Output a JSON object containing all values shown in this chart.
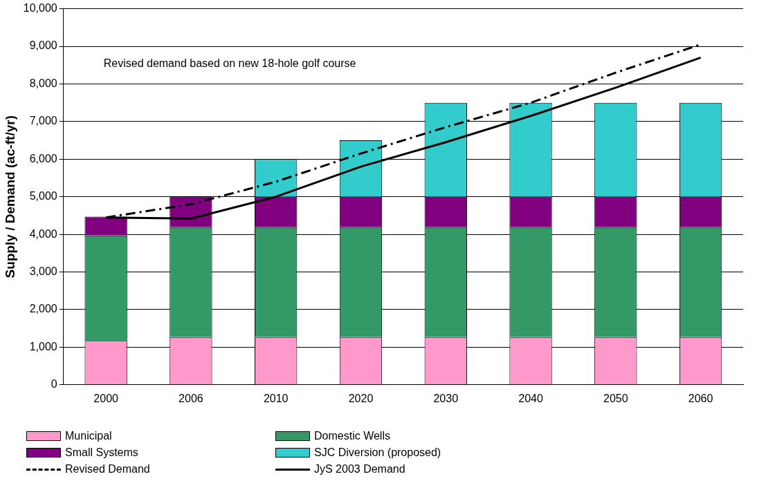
{
  "chart_data": {
    "type": "bar",
    "stacked": true,
    "ylabel": "Supply / Demand (ac-ft/yr)",
    "categories": [
      "2000",
      "2006",
      "2010",
      "2020",
      "2030",
      "2040",
      "2050",
      "2060"
    ],
    "series": [
      {
        "name": "Municipal",
        "color": "#ff99cc",
        "values": [
          1170,
          1270,
          1270,
          1270,
          1270,
          1270,
          1270,
          1270
        ]
      },
      {
        "name": "Domestic Wells",
        "color": "#339966",
        "values": [
          2800,
          2920,
          2920,
          2920,
          2920,
          2920,
          2920,
          2920
        ]
      },
      {
        "name": "Small Systems",
        "color": "#800080",
        "values": [
          500,
          810,
          810,
          810,
          810,
          810,
          810,
          810
        ]
      },
      {
        "name": "SJC Diversion (proposed)",
        "color": "#33cccc",
        "values": [
          null,
          null,
          1000,
          1500,
          2500,
          2500,
          2500,
          2500
        ]
      },
      {
        "name": "Revised Demand",
        "type": "line",
        "color": "#000000",
        "line_style": "dashed",
        "marker": "none",
        "values": [
          4450,
          4800,
          5400,
          6150,
          6850,
          7500,
          8300,
          9050
        ]
      },
      {
        "name": "JyS 2003 Demand",
        "type": "line",
        "color": "#000000",
        "line_style": "solid",
        "marker": "none",
        "values": [
          4450,
          4420,
          5000,
          5800,
          6450,
          7150,
          7900,
          8700
        ]
      }
    ],
    "ylim": [
      0,
      10000
    ],
    "yticks": [
      0,
      {
        "value": 1000,
        "label": "1,000"
      },
      {
        "value": 2000,
        "label": "2,000"
      },
      {
        "value": 3000,
        "label": "3,000"
      },
      {
        "value": 4000,
        "label": "4,000"
      },
      {
        "value": 5000,
        "label": "5,000"
      },
      {
        "value": 6000,
        "label": "6,000"
      },
      {
        "value": 7000,
        "label": "7,000"
      },
      {
        "value": 8000,
        "label": "8,000"
      },
      {
        "value": 9000,
        "label": "9,000"
      },
      {
        "value": 10000,
        "label": "10,000"
      }
    ],
    "grid": "y",
    "legend": "bottom",
    "annotations": [
      "Revised demand based on new 18-hole golf course"
    ]
  }
}
